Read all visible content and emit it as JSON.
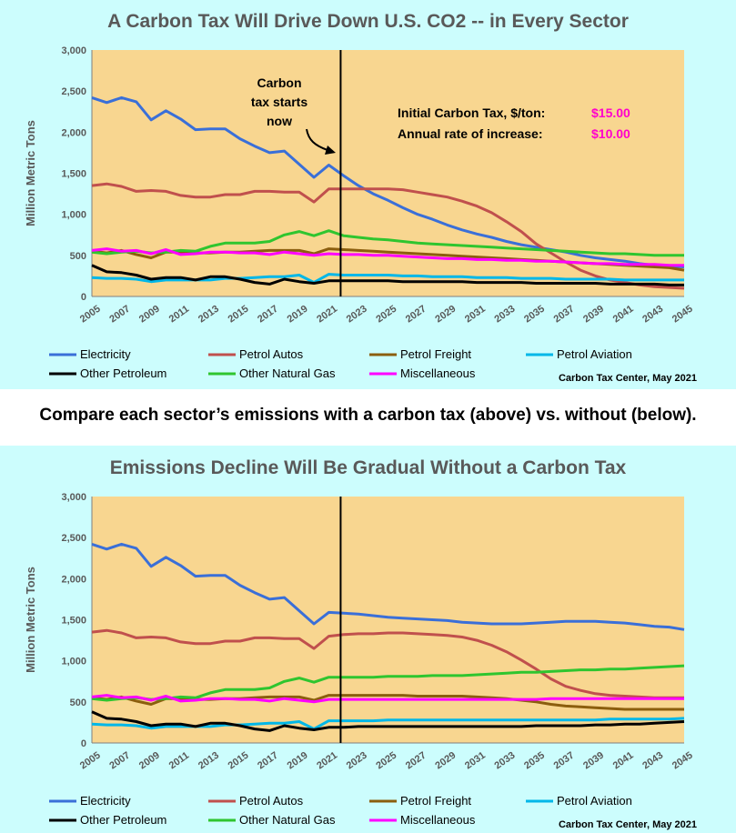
{
  "caption": "Compare each sector’s emissions with a carbon tax (above) vs. without (below).",
  "colors": {
    "background": "#ccfdfd",
    "plot_area": "#f8d690",
    "annotation_value": "#ff00cc"
  },
  "chart_data": [
    {
      "type": "line",
      "title": "A Carbon Tax Will Drive Down U.S. CO2 -- in Every Sector",
      "ylabel": "Million Metric Tons",
      "xlabel": "",
      "ylim": [
        0,
        3000
      ],
      "xlim": [
        2005,
        2045
      ],
      "y_ticks": [
        "0",
        "500",
        "1,000",
        "1,500",
        "2,000",
        "2,500",
        "3,000"
      ],
      "x_ticks": [
        "2005",
        "2007",
        "2009",
        "2011",
        "2013",
        "2015",
        "2017",
        "2019",
        "2021",
        "2023",
        "2025",
        "2027",
        "2029",
        "2031",
        "2033",
        "2035",
        "2037",
        "2039",
        "2041",
        "2043",
        "2045"
      ],
      "grid": false,
      "legend_position": "bottom",
      "vertical_marker_x": 2021.8,
      "annotations": {
        "carbon_note": [
          "Carbon",
          "tax starts",
          "now"
        ],
        "tax_label": "Initial Carbon Tax, $/ton:",
        "tax_value": "$15.00",
        "rate_label": "Annual rate of increase:",
        "rate_value": "$10.00"
      },
      "credit": "Carbon Tax Center, May 2021",
      "x": [
        2005,
        2006,
        2007,
        2008,
        2009,
        2010,
        2011,
        2012,
        2013,
        2014,
        2015,
        2016,
        2017,
        2018,
        2019,
        2020,
        2021,
        2022,
        2023,
        2024,
        2025,
        2026,
        2027,
        2028,
        2029,
        2030,
        2031,
        2032,
        2033,
        2034,
        2035,
        2036,
        2037,
        2038,
        2039,
        2040,
        2041,
        2042,
        2043,
        2044,
        2045
      ],
      "series": [
        {
          "name": "Electricity",
          "color": "#3a6fd8",
          "values": [
            2420,
            2360,
            2420,
            2370,
            2150,
            2260,
            2160,
            2030,
            2040,
            2040,
            1920,
            1830,
            1750,
            1770,
            1610,
            1450,
            1600,
            1470,
            1350,
            1250,
            1170,
            1080,
            1000,
            940,
            870,
            810,
            760,
            720,
            670,
            630,
            600,
            570,
            540,
            500,
            470,
            450,
            430,
            400,
            380,
            370,
            360
          ]
        },
        {
          "name": "Petrol Autos",
          "color": "#c0504d",
          "values": [
            1350,
            1370,
            1340,
            1280,
            1290,
            1280,
            1230,
            1210,
            1210,
            1240,
            1240,
            1280,
            1280,
            1270,
            1270,
            1150,
            1310,
            1310,
            1310,
            1310,
            1310,
            1300,
            1270,
            1240,
            1210,
            1160,
            1100,
            1020,
            910,
            790,
            640,
            530,
            420,
            320,
            250,
            200,
            170,
            140,
            120,
            110,
            100
          ]
        },
        {
          "name": "Petrol Freight",
          "color": "#8b5e0e",
          "values": [
            550,
            530,
            560,
            510,
            470,
            540,
            540,
            530,
            530,
            540,
            540,
            550,
            560,
            560,
            560,
            520,
            580,
            570,
            560,
            550,
            540,
            530,
            520,
            510,
            500,
            490,
            480,
            470,
            460,
            450,
            440,
            430,
            420,
            410,
            400,
            390,
            380,
            370,
            360,
            350,
            320
          ]
        },
        {
          "name": "Petrol Aviation",
          "color": "#00b7e8",
          "values": [
            230,
            220,
            220,
            210,
            180,
            200,
            200,
            200,
            200,
            220,
            220,
            230,
            240,
            240,
            260,
            170,
            270,
            260,
            260,
            260,
            260,
            250,
            250,
            240,
            240,
            240,
            230,
            230,
            230,
            220,
            220,
            220,
            210,
            210,
            210,
            210,
            200,
            200,
            200,
            200,
            200
          ]
        },
        {
          "name": "Other Petroleum",
          "color": "#000000",
          "values": [
            380,
            300,
            290,
            260,
            210,
            230,
            230,
            200,
            240,
            240,
            210,
            170,
            150,
            210,
            180,
            160,
            190,
            190,
            190,
            190,
            190,
            180,
            180,
            180,
            180,
            180,
            170,
            170,
            170,
            170,
            160,
            160,
            160,
            160,
            160,
            150,
            150,
            150,
            150,
            140,
            140
          ]
        },
        {
          "name": "Other Natural Gas",
          "color": "#2fc52f",
          "values": [
            540,
            520,
            540,
            550,
            530,
            540,
            560,
            550,
            610,
            650,
            650,
            650,
            670,
            750,
            790,
            740,
            800,
            740,
            720,
            700,
            690,
            670,
            650,
            640,
            630,
            620,
            610,
            600,
            590,
            580,
            570,
            560,
            550,
            540,
            530,
            520,
            520,
            510,
            500,
            500,
            500
          ]
        },
        {
          "name": "Miscellaneous",
          "color": "#ff00ff",
          "values": [
            560,
            580,
            550,
            560,
            520,
            570,
            510,
            520,
            540,
            540,
            530,
            530,
            510,
            540,
            520,
            500,
            520,
            510,
            510,
            500,
            500,
            490,
            480,
            470,
            460,
            460,
            450,
            450,
            440,
            440,
            430,
            430,
            420,
            410,
            400,
            400,
            390,
            390,
            390,
            380,
            380
          ]
        }
      ]
    },
    {
      "type": "line",
      "title": "Emissions Decline Will Be Gradual Without a Carbon Tax",
      "ylabel": "Million Metric Tons",
      "xlabel": "",
      "ylim": [
        0,
        3000
      ],
      "xlim": [
        2005,
        2045
      ],
      "y_ticks": [
        "0",
        "500",
        "1,000",
        "1,500",
        "2,000",
        "2,500",
        "3,000"
      ],
      "x_ticks": [
        "2005",
        "2007",
        "2009",
        "2011",
        "2013",
        "2015",
        "2017",
        "2019",
        "2021",
        "2023",
        "2025",
        "2027",
        "2029",
        "2031",
        "2033",
        "2035",
        "2037",
        "2039",
        "2041",
        "2043",
        "2045"
      ],
      "grid": false,
      "legend_position": "bottom",
      "vertical_marker_x": 2021.8,
      "credit": "Carbon Tax Center, May 2021",
      "x": [
        2005,
        2006,
        2007,
        2008,
        2009,
        2010,
        2011,
        2012,
        2013,
        2014,
        2015,
        2016,
        2017,
        2018,
        2019,
        2020,
        2021,
        2022,
        2023,
        2024,
        2025,
        2026,
        2027,
        2028,
        2029,
        2030,
        2031,
        2032,
        2033,
        2034,
        2035,
        2036,
        2037,
        2038,
        2039,
        2040,
        2041,
        2042,
        2043,
        2044,
        2045
      ],
      "series": [
        {
          "name": "Electricity",
          "color": "#3a6fd8",
          "values": [
            2420,
            2360,
            2420,
            2370,
            2150,
            2260,
            2160,
            2030,
            2040,
            2040,
            1920,
            1830,
            1750,
            1770,
            1610,
            1450,
            1590,
            1580,
            1570,
            1550,
            1530,
            1520,
            1510,
            1500,
            1490,
            1470,
            1460,
            1450,
            1450,
            1450,
            1460,
            1470,
            1480,
            1480,
            1480,
            1470,
            1460,
            1440,
            1420,
            1410,
            1380
          ]
        },
        {
          "name": "Petrol Autos",
          "color": "#c0504d",
          "values": [
            1350,
            1370,
            1340,
            1280,
            1290,
            1280,
            1230,
            1210,
            1210,
            1240,
            1240,
            1280,
            1280,
            1270,
            1270,
            1150,
            1300,
            1320,
            1330,
            1330,
            1340,
            1340,
            1330,
            1320,
            1310,
            1290,
            1250,
            1190,
            1110,
            1010,
            900,
            780,
            690,
            640,
            600,
            580,
            570,
            560,
            550,
            550,
            550
          ]
        },
        {
          "name": "Petrol Freight",
          "color": "#8b5e0e",
          "values": [
            550,
            530,
            560,
            510,
            470,
            540,
            540,
            530,
            530,
            540,
            540,
            550,
            560,
            560,
            560,
            520,
            580,
            580,
            580,
            580,
            580,
            580,
            570,
            570,
            570,
            570,
            560,
            550,
            540,
            520,
            500,
            470,
            450,
            440,
            430,
            420,
            410,
            410,
            410,
            410,
            410
          ]
        },
        {
          "name": "Petrol Aviation",
          "color": "#00b7e8",
          "values": [
            230,
            220,
            220,
            210,
            180,
            200,
            200,
            200,
            200,
            220,
            220,
            230,
            240,
            240,
            260,
            170,
            270,
            270,
            270,
            270,
            280,
            280,
            280,
            280,
            280,
            280,
            280,
            280,
            280,
            280,
            280,
            280,
            280,
            280,
            280,
            290,
            290,
            290,
            290,
            290,
            300
          ]
        },
        {
          "name": "Other Petroleum",
          "color": "#000000",
          "values": [
            380,
            300,
            290,
            260,
            210,
            230,
            230,
            200,
            240,
            240,
            210,
            170,
            150,
            210,
            180,
            160,
            190,
            190,
            200,
            200,
            200,
            200,
            200,
            200,
            200,
            200,
            200,
            200,
            200,
            200,
            210,
            210,
            210,
            210,
            220,
            220,
            230,
            230,
            240,
            250,
            260
          ]
        },
        {
          "name": "Other Natural Gas",
          "color": "#2fc52f",
          "values": [
            540,
            520,
            540,
            550,
            530,
            540,
            560,
            550,
            610,
            650,
            650,
            650,
            670,
            750,
            790,
            740,
            800,
            800,
            800,
            800,
            810,
            810,
            810,
            820,
            820,
            820,
            830,
            840,
            850,
            860,
            860,
            870,
            880,
            890,
            890,
            900,
            900,
            910,
            920,
            930,
            940
          ]
        },
        {
          "name": "Miscellaneous",
          "color": "#ff00ff",
          "values": [
            560,
            580,
            550,
            560,
            520,
            570,
            510,
            520,
            540,
            540,
            530,
            530,
            510,
            540,
            520,
            500,
            530,
            530,
            530,
            530,
            530,
            530,
            530,
            530,
            530,
            530,
            530,
            530,
            530,
            530,
            530,
            540,
            540,
            540,
            540,
            540,
            540,
            540,
            540,
            540,
            540
          ]
        }
      ]
    }
  ]
}
